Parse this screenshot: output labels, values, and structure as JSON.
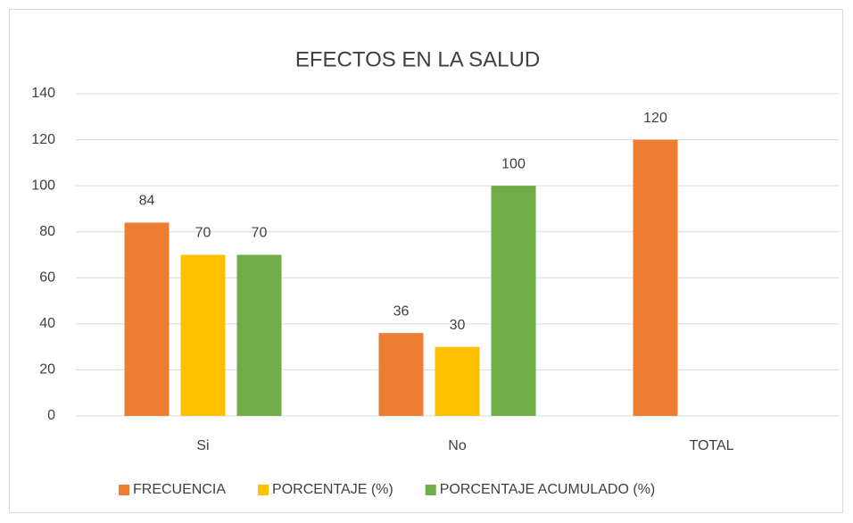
{
  "chart_data": {
    "type": "bar",
    "title": "EFECTOS EN LA SALUD",
    "categories": [
      "Si",
      "No",
      "TOTAL"
    ],
    "series": [
      {
        "name": "FRECUENCIA",
        "color": "#ed7d31",
        "values": [
          84,
          36,
          120
        ]
      },
      {
        "name": "PORCENTAJE (%)",
        "color": "#ffc000",
        "values": [
          70,
          30,
          null
        ]
      },
      {
        "name": "PORCENTAJE ACUMULADO (%)",
        "color": "#70ad47",
        "values": [
          70,
          100,
          null
        ]
      }
    ],
    "ylim": [
      0,
      140
    ],
    "yticks": [
      0,
      20,
      40,
      60,
      80,
      100,
      120,
      140
    ],
    "grid": true,
    "legend": "bottom"
  }
}
